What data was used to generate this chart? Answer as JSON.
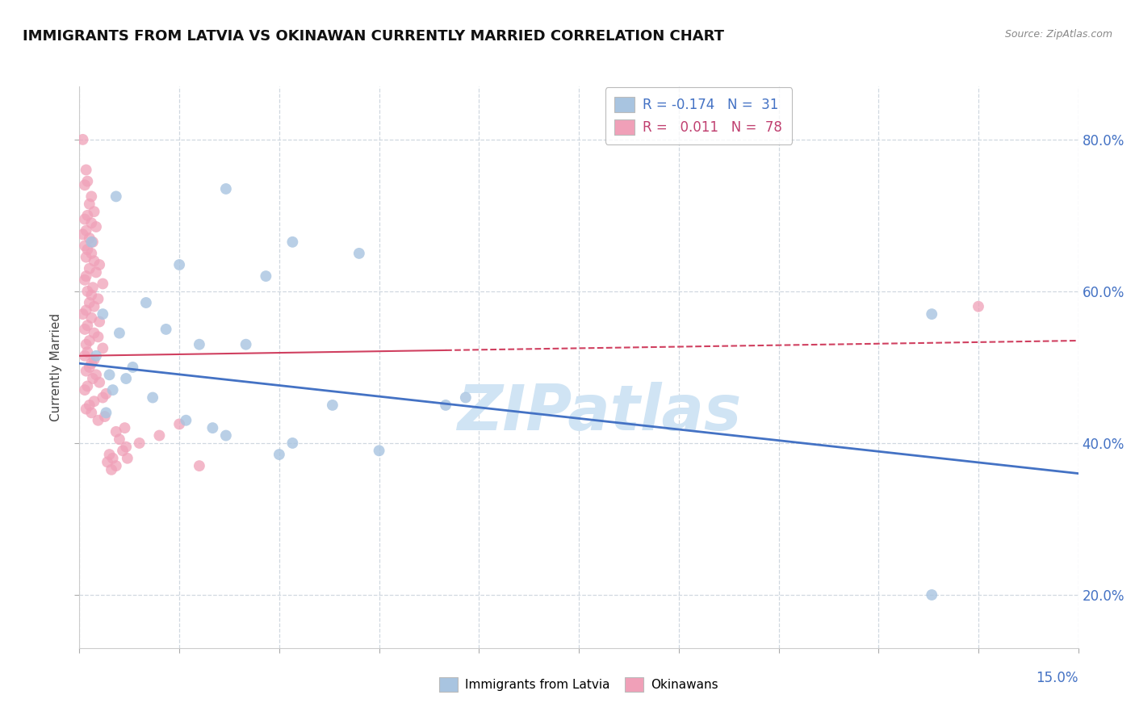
{
  "title": "IMMIGRANTS FROM LATVIA VS OKINAWAN CURRENTLY MARRIED CORRELATION CHART",
  "source": "Source: ZipAtlas.com",
  "color_blue": "#a8c4e0",
  "color_pink": "#f0a0b8",
  "color_blue_line": "#4472c4",
  "color_pink_line": "#d04060",
  "color_blue_text": "#4472c4",
  "color_pink_text": "#c04070",
  "color_dark_text": "#1a1a2e",
  "watermark_color": "#d0e4f4",
  "grid_color": "#d0d8e0",
  "xmin": 0.0,
  "xmax": 15.0,
  "ymin": 13.0,
  "ymax": 87.0,
  "yticks": [
    20.0,
    40.0,
    60.0,
    80.0
  ],
  "xtick_count": 11,
  "blue_dots": [
    [
      0.18,
      66.5
    ],
    [
      0.55,
      72.5
    ],
    [
      2.2,
      73.5
    ],
    [
      3.2,
      66.5
    ],
    [
      1.5,
      63.5
    ],
    [
      2.8,
      62.0
    ],
    [
      4.2,
      65.0
    ],
    [
      1.0,
      58.5
    ],
    [
      0.35,
      57.0
    ],
    [
      0.6,
      54.5
    ],
    [
      1.8,
      53.0
    ],
    [
      2.5,
      53.0
    ],
    [
      0.25,
      51.5
    ],
    [
      0.8,
      50.0
    ],
    [
      1.3,
      55.0
    ],
    [
      0.45,
      49.0
    ],
    [
      0.7,
      48.5
    ],
    [
      0.5,
      47.0
    ],
    [
      1.1,
      46.0
    ],
    [
      3.8,
      45.0
    ],
    [
      5.8,
      46.0
    ],
    [
      5.5,
      45.0
    ],
    [
      0.4,
      44.0
    ],
    [
      1.6,
      43.0
    ],
    [
      2.0,
      42.0
    ],
    [
      2.2,
      41.0
    ],
    [
      3.2,
      40.0
    ],
    [
      4.5,
      39.0
    ],
    [
      3.0,
      38.5
    ],
    [
      12.8,
      57.0
    ],
    [
      12.8,
      20.0
    ]
  ],
  "pink_dots": [
    [
      0.05,
      80.0
    ],
    [
      0.1,
      76.0
    ],
    [
      0.12,
      74.5
    ],
    [
      0.08,
      74.0
    ],
    [
      0.18,
      72.5
    ],
    [
      0.15,
      71.5
    ],
    [
      0.22,
      70.5
    ],
    [
      0.12,
      70.0
    ],
    [
      0.08,
      69.5
    ],
    [
      0.18,
      69.0
    ],
    [
      0.25,
      68.5
    ],
    [
      0.1,
      68.0
    ],
    [
      0.05,
      67.5
    ],
    [
      0.15,
      67.0
    ],
    [
      0.2,
      66.5
    ],
    [
      0.08,
      66.0
    ],
    [
      0.12,
      65.5
    ],
    [
      0.18,
      65.0
    ],
    [
      0.1,
      64.5
    ],
    [
      0.22,
      64.0
    ],
    [
      0.3,
      63.5
    ],
    [
      0.15,
      63.0
    ],
    [
      0.25,
      62.5
    ],
    [
      0.1,
      62.0
    ],
    [
      0.08,
      61.5
    ],
    [
      0.35,
      61.0
    ],
    [
      0.2,
      60.5
    ],
    [
      0.12,
      60.0
    ],
    [
      0.18,
      59.5
    ],
    [
      0.28,
      59.0
    ],
    [
      0.15,
      58.5
    ],
    [
      0.22,
      58.0
    ],
    [
      0.1,
      57.5
    ],
    [
      0.05,
      57.0
    ],
    [
      0.18,
      56.5
    ],
    [
      0.3,
      56.0
    ],
    [
      0.12,
      55.5
    ],
    [
      0.08,
      55.0
    ],
    [
      0.22,
      54.5
    ],
    [
      0.28,
      54.0
    ],
    [
      0.15,
      53.5
    ],
    [
      0.1,
      53.0
    ],
    [
      0.35,
      52.5
    ],
    [
      0.12,
      52.0
    ],
    [
      0.08,
      51.5
    ],
    [
      0.22,
      51.0
    ],
    [
      0.18,
      50.5
    ],
    [
      0.15,
      50.0
    ],
    [
      0.1,
      49.5
    ],
    [
      0.25,
      49.0
    ],
    [
      0.2,
      48.5
    ],
    [
      0.3,
      48.0
    ],
    [
      0.12,
      47.5
    ],
    [
      0.08,
      47.0
    ],
    [
      0.4,
      46.5
    ],
    [
      0.35,
      46.0
    ],
    [
      0.22,
      45.5
    ],
    [
      0.15,
      45.0
    ],
    [
      0.1,
      44.5
    ],
    [
      0.18,
      44.0
    ],
    [
      0.38,
      43.5
    ],
    [
      0.28,
      43.0
    ],
    [
      1.5,
      42.5
    ],
    [
      0.55,
      41.5
    ],
    [
      0.6,
      40.5
    ],
    [
      0.7,
      39.5
    ],
    [
      0.45,
      38.5
    ],
    [
      0.5,
      38.0
    ],
    [
      0.42,
      37.5
    ],
    [
      0.68,
      42.0
    ],
    [
      1.2,
      41.0
    ],
    [
      0.9,
      40.0
    ],
    [
      0.65,
      39.0
    ],
    [
      0.72,
      38.0
    ],
    [
      0.55,
      37.0
    ],
    [
      0.48,
      36.5
    ],
    [
      1.8,
      37.0
    ],
    [
      13.5,
      58.0
    ]
  ],
  "blue_trend_x0": 0.0,
  "blue_trend_y0": 50.5,
  "blue_trend_x1": 15.0,
  "blue_trend_y1": 36.0,
  "pink_trend_x0": 0.0,
  "pink_trend_y0": 51.5,
  "pink_trend_x1": 15.0,
  "pink_trend_y1": 53.5,
  "pink_trend_solid_end": 5.5,
  "background_color": "#ffffff"
}
